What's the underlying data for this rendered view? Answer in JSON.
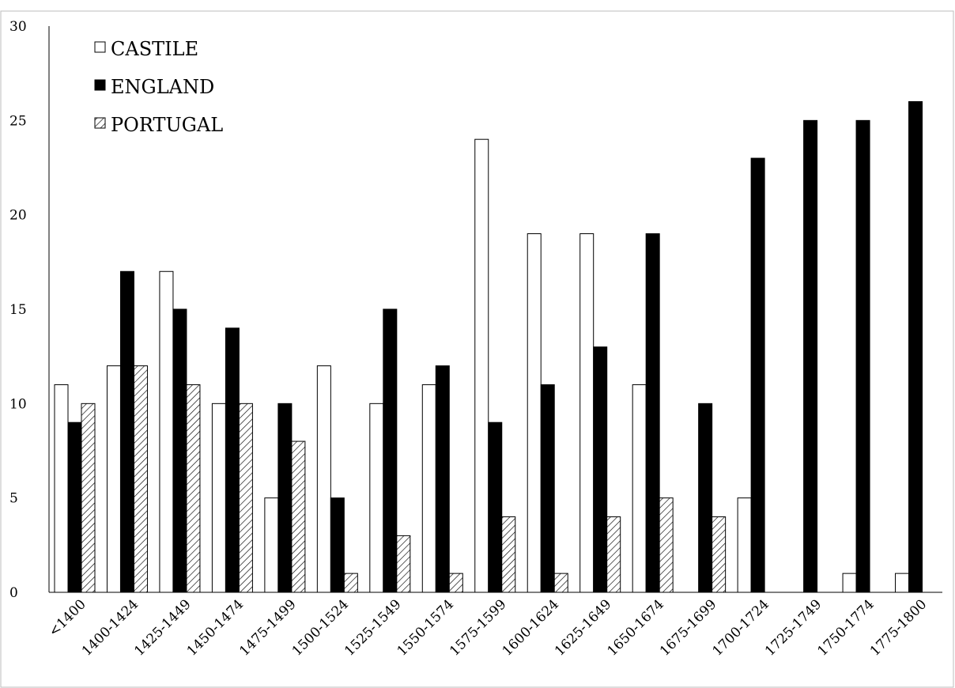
{
  "chart_data": {
    "type": "bar",
    "title": "",
    "xlabel": "",
    "ylabel": "",
    "ylim": [
      0,
      30
    ],
    "yticks": [
      0,
      5,
      10,
      15,
      20,
      25,
      30
    ],
    "grid": false,
    "legend_position": "top-left",
    "categories": [
      "<1400",
      "1400-1424",
      "1425-1449",
      "1450-1474",
      "1475-1499",
      "1500-1524",
      "1525-1549",
      "1550-1574",
      "1575-1599",
      "1600-1624",
      "1625-1649",
      "1650-1674",
      "1675-1699",
      "1700-1724",
      "1725-1749",
      "1750-1774",
      "1775-1800"
    ],
    "series": [
      {
        "name": "CASTILE",
        "fill": "white",
        "values": [
          11,
          12,
          17,
          10,
          5,
          12,
          10,
          11,
          24,
          19,
          19,
          11,
          0,
          5,
          0,
          1,
          1
        ]
      },
      {
        "name": "ENGLAND",
        "fill": "black",
        "values": [
          9,
          17,
          15,
          14,
          10,
          5,
          15,
          12,
          9,
          11,
          13,
          19,
          10,
          23,
          25,
          25,
          26
        ]
      },
      {
        "name": "PORTUGAL",
        "fill": "hatched",
        "values": [
          10,
          12,
          11,
          10,
          8,
          1,
          3,
          1,
          4,
          1,
          4,
          5,
          4,
          0,
          0,
          0,
          0
        ]
      }
    ]
  }
}
